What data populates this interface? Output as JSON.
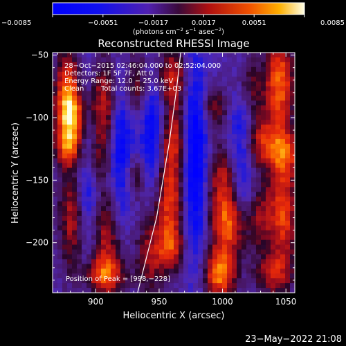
{
  "chart_data": {
    "type": "heatmap",
    "title": "Reconstructed RHESSI Image",
    "xlabel": "Heliocentric X (arcsec)",
    "ylabel": "Heliocentric Y (arcsec)",
    "xlim": [
      866,
      1057
    ],
    "ylim": [
      -240,
      -48
    ],
    "x_ticks": [
      900,
      950,
      1000,
      1050
    ],
    "x_tick_labels": [
      "900",
      "950",
      "1000",
      "1050"
    ],
    "y_ticks": [
      -50,
      -100,
      -150,
      -200
    ],
    "y_tick_labels": [
      "−50",
      "−100",
      "−150",
      "−200"
    ],
    "colorbar": {
      "range": [
        -0.0085,
        0.0085
      ],
      "ticks": [
        -0.0085,
        -0.0051,
        -0.0017,
        0.0017,
        0.0051,
        0.0085
      ],
      "tick_labels": [
        "−0.0085",
        "−0.0051",
        "−0.0017",
        "0.0017",
        "0.0051",
        "0.0085"
      ],
      "unit_main": "(photons cm",
      "unit_exp1": "−2",
      "unit_mid1": " s",
      "unit_exp2": "−1",
      "unit_mid2": " asec",
      "unit_exp3": "−2",
      "unit_close": ")"
    },
    "annotations": [
      "28−Oct−2015 02:46:04.000 to 02:52:04.000",
      "Detectors: 1F 5F 7F, Att 0",
      "Energy Range: 12.0 − 25.0 keV",
      "Clean",
      "Total counts: 3.67E+03",
      "Position of Peak = [998,−228]"
    ],
    "limb_curve": [
      [
        933,
        -240
      ],
      [
        948,
        -180
      ],
      [
        958,
        -120
      ],
      [
        964,
        -75
      ],
      [
        967,
        -48
      ]
    ],
    "blobs": [
      {
        "x": 878,
        "y": -75,
        "sx": 7,
        "sy": 22,
        "v": 0.007
      },
      {
        "x": 882,
        "y": -102,
        "sx": 9,
        "sy": 16,
        "v": 0.0085
      },
      {
        "x": 878,
        "y": -125,
        "sx": 7,
        "sy": 10,
        "v": 0.0055
      },
      {
        "x": 883,
        "y": -180,
        "sx": 8,
        "sy": 30,
        "v": 0.006
      },
      {
        "x": 906,
        "y": -93,
        "sx": 9,
        "sy": 28,
        "v": 0.0065
      },
      {
        "x": 897,
        "y": -136,
        "sx": 8,
        "sy": 12,
        "v": 0.004
      },
      {
        "x": 908,
        "y": -195,
        "sx": 10,
        "sy": 30,
        "v": 0.0055
      },
      {
        "x": 905,
        "y": -226,
        "sx": 12,
        "sy": 10,
        "v": 0.006
      },
      {
        "x": 932,
        "y": -75,
        "sx": 8,
        "sy": 20,
        "v": 0.0045
      },
      {
        "x": 930,
        "y": -146,
        "sx": 7,
        "sy": 14,
        "v": 0.004
      },
      {
        "x": 943,
        "y": -210,
        "sx": 8,
        "sy": 22,
        "v": 0.0045
      },
      {
        "x": 960,
        "y": -68,
        "sx": 10,
        "sy": 18,
        "v": 0.006
      },
      {
        "x": 962,
        "y": -115,
        "sx": 8,
        "sy": 18,
        "v": 0.005
      },
      {
        "x": 958,
        "y": -165,
        "sx": 9,
        "sy": 30,
        "v": 0.007
      },
      {
        "x": 960,
        "y": -205,
        "sx": 7,
        "sy": 12,
        "v": 0.0045
      },
      {
        "x": 993,
        "y": -92,
        "sx": 8,
        "sy": 12,
        "v": 0.004
      },
      {
        "x": 1000,
        "y": -148,
        "sx": 9,
        "sy": 18,
        "v": 0.005
      },
      {
        "x": 1005,
        "y": -185,
        "sx": 10,
        "sy": 18,
        "v": 0.008
      },
      {
        "x": 998,
        "y": -225,
        "sx": 9,
        "sy": 14,
        "v": 0.0085
      },
      {
        "x": 1020,
        "y": -75,
        "sx": 8,
        "sy": 18,
        "v": 0.005
      },
      {
        "x": 1045,
        "y": -72,
        "sx": 8,
        "sy": 26,
        "v": 0.008
      },
      {
        "x": 1030,
        "y": -120,
        "sx": 12,
        "sy": 15,
        "v": 0.006
      },
      {
        "x": 1050,
        "y": -128,
        "sx": 8,
        "sy": 12,
        "v": 0.005
      },
      {
        "x": 1030,
        "y": -180,
        "sx": 7,
        "sy": 20,
        "v": 0.004
      },
      {
        "x": 1048,
        "y": -175,
        "sx": 8,
        "sy": 30,
        "v": 0.007
      },
      {
        "x": 1040,
        "y": -225,
        "sx": 10,
        "sy": 12,
        "v": 0.005
      }
    ],
    "troughs": [
      {
        "x": 893,
        "y": -150,
        "sx": 7,
        "sy": 60,
        "v": -0.006
      },
      {
        "x": 920,
        "y": -125,
        "sx": 7,
        "sy": 45,
        "v": -0.0065
      },
      {
        "x": 945,
        "y": -110,
        "sx": 7,
        "sy": 40,
        "v": -0.006
      },
      {
        "x": 978,
        "y": -130,
        "sx": 7,
        "sy": 60,
        "v": -0.007
      },
      {
        "x": 1015,
        "y": -120,
        "sx": 7,
        "sy": 45,
        "v": -0.0055
      }
    ]
  },
  "footer": {
    "timestamp": "23−May−2022 21:08"
  }
}
